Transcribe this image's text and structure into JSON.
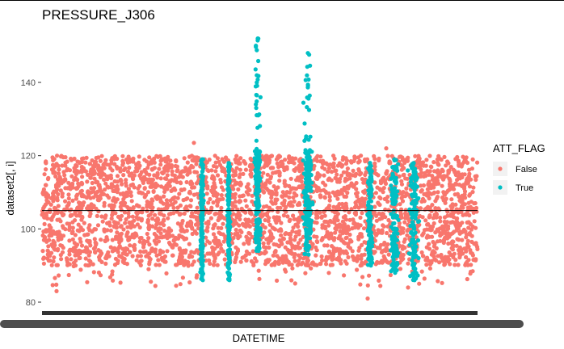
{
  "chart_data": {
    "type": "scatter",
    "title": "PRESSURE_J306",
    "xlabel": "DATETIME",
    "ylabel": "dataset2[, i]",
    "ylim": [
      78,
      154
    ],
    "y_ticks": [
      80,
      100,
      120,
      140
    ],
    "x_tick_labels": "overlapping, illegible (rendered as a solid bar)",
    "reference_line_y": 105,
    "grid": false,
    "legend": {
      "title": "ATT_FLAG",
      "placement": "right",
      "entries": [
        {
          "label": "False",
          "color": "#F8766D"
        },
        {
          "label": "True",
          "color": "#00BFC4"
        }
      ]
    },
    "series": [
      {
        "name": "False",
        "color": "#F8766D",
        "y_range": [
          90,
          120
        ],
        "notable_points": [
          123.5,
          122,
          83,
          81,
          84
        ]
      },
      {
        "name": "True",
        "color": "#00BFC4",
        "clusters": [
          {
            "y_min": 86,
            "y_max": 119
          },
          {
            "y_min": 86,
            "y_max": 118
          },
          {
            "y_min": 94,
            "y_max": 152
          },
          {
            "y_min": 93,
            "y_max": 148
          },
          {
            "y_min": 90,
            "y_max": 118
          },
          {
            "y_min": 88,
            "y_max": 119
          },
          {
            "y_min": 86,
            "y_max": 118
          }
        ]
      }
    ]
  }
}
